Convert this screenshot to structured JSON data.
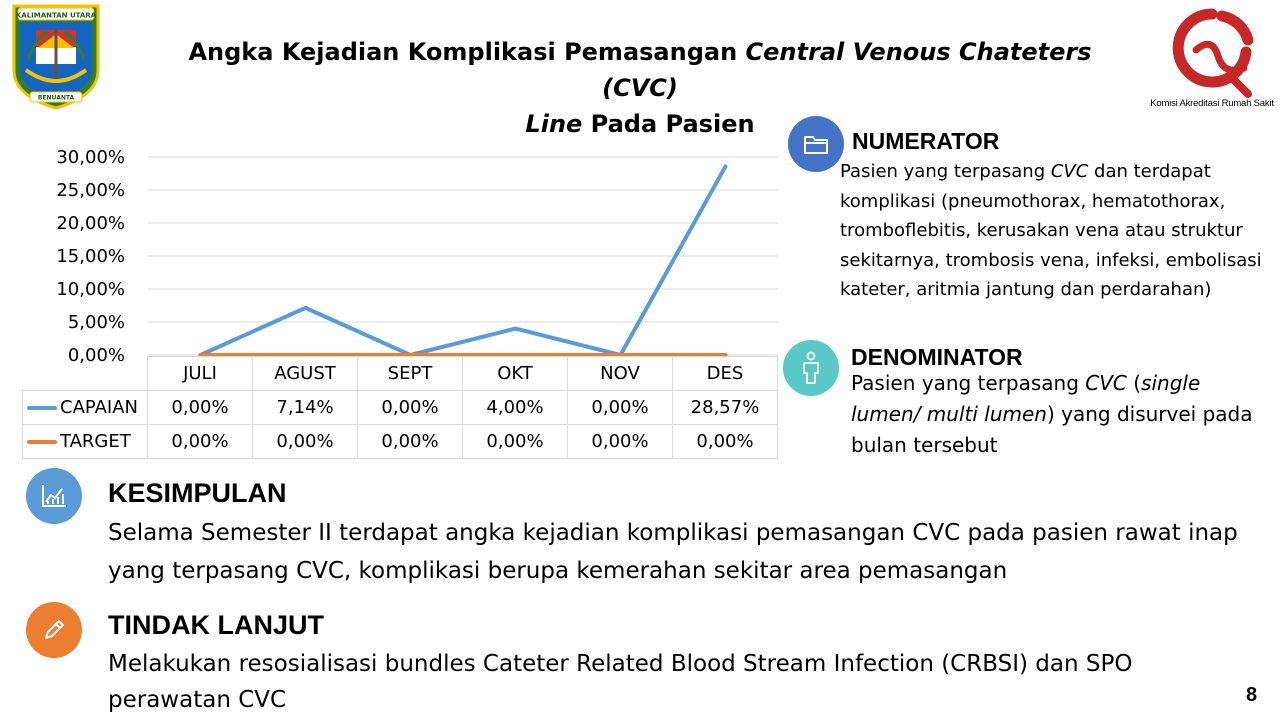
{
  "title": {
    "part1": "Angka Kejadian Komplikasi Pemasangan ",
    "part2_italic": "Central Venous Chateters (CVC)",
    "part3_italic": "Line",
    "part4": " Pada Pasien"
  },
  "logos": {
    "left_text_top": "KALIMANTAN UTARA",
    "left_text_bottom": "BENUANTA",
    "right_text": "Komisi Akreditasi Rumah Sakit"
  },
  "chart_data": {
    "type": "line",
    "categories": [
      "JULI",
      "AGUST",
      "SEPT",
      "OKT",
      "NOV",
      "DES"
    ],
    "series": [
      {
        "name": "CAPAIAN",
        "color": "#5b9bd5",
        "values": [
          0.0,
          7.14,
          0.0,
          4.0,
          0.0,
          28.57
        ],
        "labels": [
          "0,00%",
          "7,14%",
          "0,00%",
          "4,00%",
          "0,00%",
          "28,57%"
        ]
      },
      {
        "name": "TARGET",
        "color": "#ed7d31",
        "values": [
          0.0,
          0.0,
          0.0,
          0.0,
          0.0,
          0.0
        ],
        "labels": [
          "0,00%",
          "0,00%",
          "0,00%",
          "0,00%",
          "0,00%",
          "0,00%"
        ]
      }
    ],
    "yticks": [
      "0,00%",
      "5,00%",
      "10,00%",
      "15,00%",
      "20,00%",
      "25,00%",
      "30,00%"
    ],
    "ylim": [
      0,
      30
    ],
    "grid": true,
    "legend": "data-table"
  },
  "numerator": {
    "title": "NUMERATOR",
    "text_1": "Pasien yang terpasang ",
    "text_italic": "CVC",
    "text_2": " dan terdapat komplikasi (pneumothorax, hematothorax, tromboflebitis, kerusakan vena atau struktur sekitarnya, trombosis vena, infeksi, embolisasi kateter, aritmia jantung dan perdarahan)"
  },
  "denominator": {
    "title": "DENOMINATOR",
    "text_1": "Pasien yang terpasang ",
    "text_italic_1": "CVC",
    "text_2": " (",
    "text_italic_2": "single lumen/ multi lumen",
    "text_3": ") yang disurvei pada bulan tersebut"
  },
  "kesimpulan": {
    "title": "KESIMPULAN",
    "text": "Selama Semester II terdapat angka kejadian komplikasi pemasangan CVC pada pasien rawat inap yang terpasang CVC, komplikasi berupa kemerahan sekitar area pemasangan"
  },
  "tindak_lanjut": {
    "title": "TINDAK LANJUT",
    "text": "Melakukan resosialisasi bundles Cateter Related Blood Stream Infection (CRBSI) dan SPO perawatan CVC"
  },
  "page_number": "8",
  "icons": {
    "numerator": "folder-icon",
    "denominator": "person-icon",
    "kesimpulan": "chart-icon",
    "tindak_lanjut": "pencil-icon"
  },
  "colors": {
    "capaian": "#5b9bd5",
    "target": "#ed7d31",
    "numerator_circle": "#4472c4",
    "denominator_circle": "#5bc8c8",
    "kesimpulan_circle": "#5b9bd5",
    "tindak_circle": "#ed7d31"
  }
}
